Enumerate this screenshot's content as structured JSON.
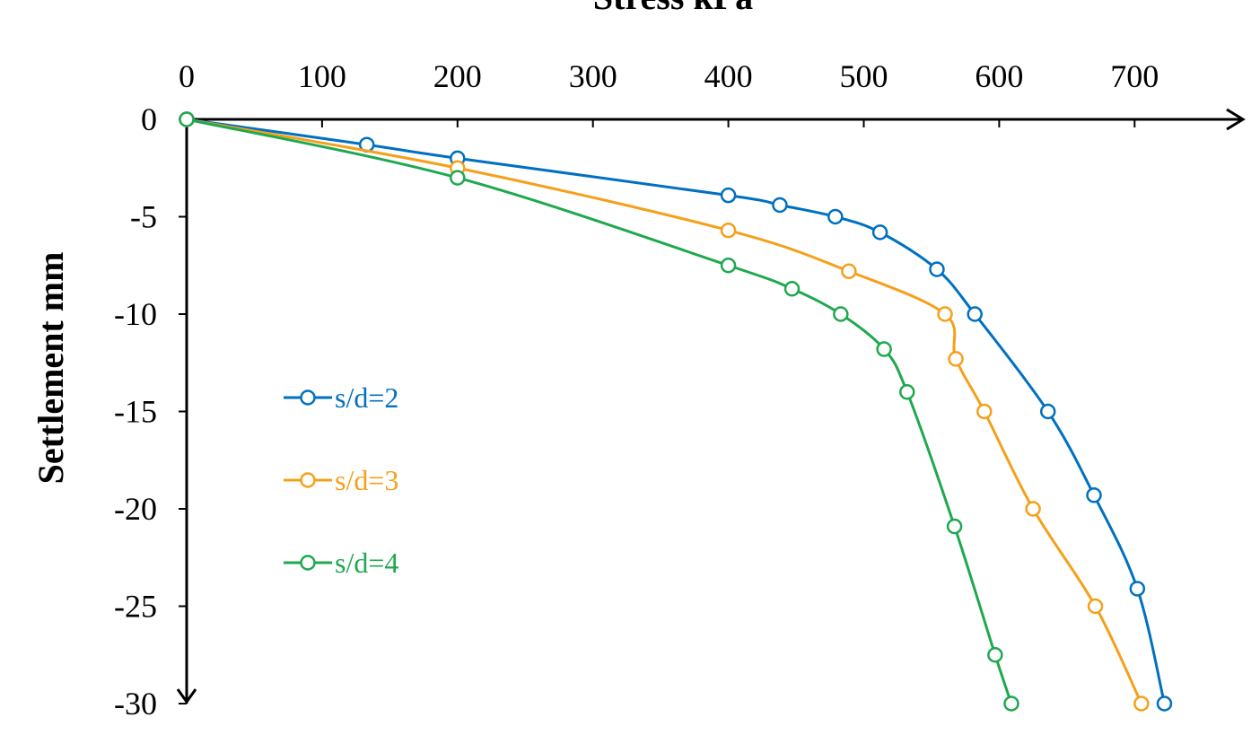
{
  "chart_data": {
    "type": "line",
    "title": "Stress kPa",
    "y_label": "Settlement  mm",
    "xlim": [
      0,
      780
    ],
    "xticks": [
      0,
      100,
      200,
      300,
      400,
      500,
      600,
      700
    ],
    "ylim": [
      -30,
      0
    ],
    "yticks": [
      0,
      -5,
      -10,
      -15,
      -20,
      -25,
      -30
    ],
    "smooth": true,
    "legend": "left",
    "series": [
      {
        "name": "s/d=2",
        "color": "#0070c0",
        "x": [
          0,
          133,
          200,
          400,
          438,
          479,
          512,
          554,
          582,
          636,
          670,
          702,
          722
        ],
        "values": [
          0,
          -1.3,
          -2,
          -3.9,
          -4.4,
          -5,
          -5.8,
          -7.7,
          -10,
          -15,
          -19.3,
          -24.1,
          -30
        ]
      },
      {
        "name": "s/d=3",
        "color": "#f5a01a",
        "x": [
          0,
          200,
          400,
          489,
          560,
          568,
          589,
          625,
          671,
          705
        ],
        "values": [
          0,
          -2.5,
          -5.7,
          -7.8,
          -10,
          -12.3,
          -15,
          -20,
          -25,
          -30
        ]
      },
      {
        "name": "s/d=4",
        "color": "#1fa84f",
        "x": [
          0,
          200,
          400,
          447,
          483,
          515,
          532,
          567,
          597,
          609
        ],
        "values": [
          0,
          -3,
          -7.5,
          -8.7,
          -10,
          -11.8,
          -14,
          -20.9,
          -27.5,
          -30
        ]
      }
    ]
  }
}
